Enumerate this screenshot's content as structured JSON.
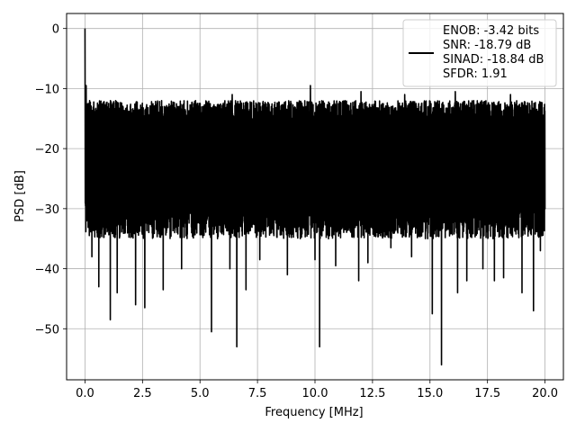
{
  "chart_data": {
    "type": "line",
    "xlabel": "Frequency [MHz]",
    "ylabel": "PSD [dB]",
    "xlim": [
      -0.8,
      20.8
    ],
    "ylim": [
      -58.5,
      2.5
    ],
    "xticks": [
      0.0,
      2.5,
      5.0,
      7.5,
      10.0,
      12.5,
      15.0,
      17.5,
      20.0
    ],
    "xtick_labels": [
      "0.0",
      "2.5",
      "5.0",
      "7.5",
      "10.0",
      "12.5",
      "15.0",
      "17.5",
      "20.0"
    ],
    "yticks": [
      0,
      -10,
      -20,
      -30,
      -40,
      -50
    ],
    "ytick_labels": [
      "0",
      "−10",
      "−20",
      "−30",
      "−40",
      "−50"
    ],
    "grid": true,
    "legend_position": "top-right",
    "series": [
      {
        "color": "#000000",
        "legend": [
          "ENOB: -3.42 bits",
          "SNR: -18.79 dB",
          "SINAD: -18.84 dB",
          "SFDR: 1.91"
        ],
        "peak": {
          "x": 0.0,
          "y": 0
        },
        "noise_band": {
          "upper_db": -14,
          "lower_db": -32,
          "x_start": 0.0,
          "x_end": 20.0
        },
        "dips": [
          {
            "x": 0.3,
            "y": -38
          },
          {
            "x": 0.6,
            "y": -43
          },
          {
            "x": 0.9,
            "y": -46
          },
          {
            "x": 1.1,
            "y": -48.5
          },
          {
            "x": 1.4,
            "y": -44
          },
          {
            "x": 2.2,
            "y": -46
          },
          {
            "x": 2.6,
            "y": -46.5
          },
          {
            "x": 3.4,
            "y": -43.5
          },
          {
            "x": 4.2,
            "y": -40
          },
          {
            "x": 4.6,
            "y": -49
          },
          {
            "x": 5.5,
            "y": -50.5
          },
          {
            "x": 6.3,
            "y": -40
          },
          {
            "x": 6.6,
            "y": -53
          },
          {
            "x": 7.0,
            "y": -43.5
          },
          {
            "x": 7.6,
            "y": -38.5
          },
          {
            "x": 8.8,
            "y": -41
          },
          {
            "x": 10.0,
            "y": -38.5
          },
          {
            "x": 10.2,
            "y": -53
          },
          {
            "x": 10.9,
            "y": -39.5
          },
          {
            "x": 11.9,
            "y": -42
          },
          {
            "x": 12.3,
            "y": -39
          },
          {
            "x": 13.3,
            "y": -36.5
          },
          {
            "x": 14.2,
            "y": -38
          },
          {
            "x": 15.1,
            "y": -47.5
          },
          {
            "x": 15.5,
            "y": -56
          },
          {
            "x": 16.2,
            "y": -44
          },
          {
            "x": 16.6,
            "y": -42
          },
          {
            "x": 17.3,
            "y": -40
          },
          {
            "x": 17.8,
            "y": -42
          },
          {
            "x": 18.2,
            "y": -41.5
          },
          {
            "x": 19.0,
            "y": -44
          },
          {
            "x": 19.5,
            "y": -47
          },
          {
            "x": 19.8,
            "y": -37
          }
        ],
        "spikes": [
          {
            "x": 0.05,
            "y": -9.5
          },
          {
            "x": 0.2,
            "y": -12
          },
          {
            "x": 0.9,
            "y": -14
          },
          {
            "x": 4.6,
            "y": -13.5
          },
          {
            "x": 6.4,
            "y": -11
          },
          {
            "x": 8.1,
            "y": -13
          },
          {
            "x": 9.8,
            "y": -9.5
          },
          {
            "x": 10.6,
            "y": -12.5
          },
          {
            "x": 12.0,
            "y": -10.5
          },
          {
            "x": 13.9,
            "y": -11
          },
          {
            "x": 16.1,
            "y": -10.5
          },
          {
            "x": 16.9,
            "y": -12
          },
          {
            "x": 18.5,
            "y": -11
          }
        ]
      }
    ]
  }
}
